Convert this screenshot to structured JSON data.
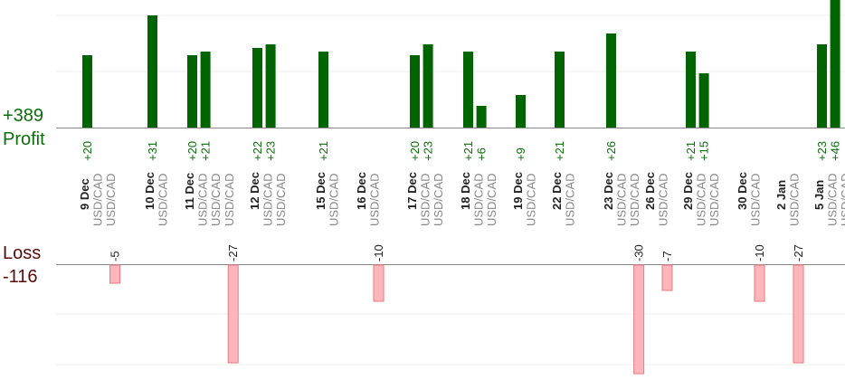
{
  "summary": {
    "profit_total": "+389",
    "profit_label": "Profit",
    "loss_label": "Loss",
    "loss_total": "-116"
  },
  "colors": {
    "profit_bar": "#006400",
    "loss_bar_fill": "#ffb6bb",
    "loss_bar_stroke": "#e87a82",
    "profit_text": "#0a6e0a",
    "loss_text": "#5a0a0a",
    "date_text": "#222222",
    "pair_text": "#888888"
  },
  "chart_data": {
    "type": "bar",
    "title": "",
    "xlabel": "",
    "ylabel": "",
    "ylim_profit": [
      0,
      31
    ],
    "ylim_loss": [
      -27,
      0
    ],
    "grid": true,
    "days": [
      {
        "date": "9 Dec",
        "trades": [
          {
            "pair": "USD/CAD",
            "value": 20
          },
          {
            "pair": "USD/CAD",
            "value": -5
          }
        ]
      },
      {
        "date": "10 Dec",
        "trades": [
          {
            "pair": "USD/CAD",
            "value": 31
          }
        ]
      },
      {
        "date": "11 Dec",
        "trades": [
          {
            "pair": "USD/CAD",
            "value": 20
          },
          {
            "pair": "USD/CAD",
            "value": 21
          },
          {
            "pair": "USD/CAD",
            "value": -27
          }
        ]
      },
      {
        "date": "12 Dec",
        "trades": [
          {
            "pair": "USD/CAD",
            "value": 22
          },
          {
            "pair": "USD/CAD",
            "value": 23
          }
        ]
      },
      {
        "date": "15 Dec",
        "trades": [
          {
            "pair": "USD/CAD",
            "value": 21
          }
        ]
      },
      {
        "date": "16 Dec",
        "trades": [
          {
            "pair": "USD/CAD",
            "value": -10
          }
        ]
      },
      {
        "date": "17 Dec",
        "trades": [
          {
            "pair": "USD/CAD",
            "value": 20
          },
          {
            "pair": "USD/CAD",
            "value": 23
          }
        ]
      },
      {
        "date": "18 Dec",
        "trades": [
          {
            "pair": "USD/CAD",
            "value": 21
          },
          {
            "pair": "USD/CAD",
            "value": 6
          }
        ]
      },
      {
        "date": "19 Dec",
        "trades": [
          {
            "pair": "USD/CAD",
            "value": 9
          }
        ]
      },
      {
        "date": "22 Dec",
        "trades": [
          {
            "pair": "USD/CAD",
            "value": 21
          }
        ]
      },
      {
        "date": "23 Dec",
        "trades": [
          {
            "pair": "USD/CAD",
            "value": 26
          },
          {
            "pair": "USD/CAD",
            "value": -30
          }
        ]
      },
      {
        "date": "26 Dec",
        "trades": [
          {
            "pair": "USD/CAD",
            "value": -7
          }
        ]
      },
      {
        "date": "29 Dec",
        "trades": [
          {
            "pair": "USD/CAD",
            "value": 21
          },
          {
            "pair": "USD/CAD",
            "value": 15
          }
        ]
      },
      {
        "date": "30 Dec",
        "trades": [
          {
            "pair": "USD/CAD",
            "value": -10
          }
        ]
      },
      {
        "date": "2 Jan",
        "trades": [
          {
            "pair": "USD/CAD",
            "value": -27
          }
        ]
      },
      {
        "date": "5 Jan",
        "trades": [
          {
            "pair": "USD/CAD",
            "value": 23
          },
          {
            "pair": "USD/CAD",
            "value": 46
          }
        ]
      }
    ]
  }
}
